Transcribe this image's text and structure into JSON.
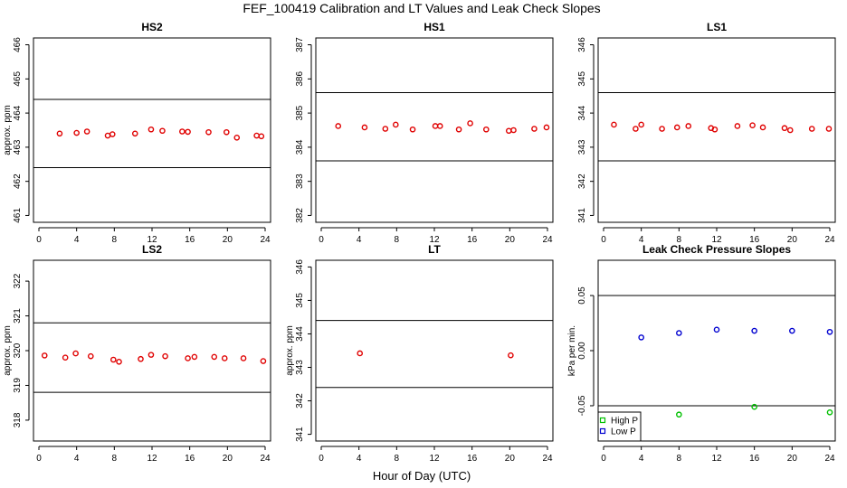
{
  "figure_title": "FEF_100419  Calibration and LT Values and Leak Check Slopes",
  "x_axis_label": "Hour of Day (UTC)",
  "chart_data": [
    {
      "type": "scatter",
      "title": "HS2",
      "ylabel": "approx. ppm",
      "xlim": [
        0,
        24
      ],
      "xticks": [
        0,
        4,
        8,
        12,
        16,
        20,
        24
      ],
      "ylim": [
        460.8,
        466.2
      ],
      "yticks": [
        461,
        462,
        463,
        464,
        465,
        466
      ],
      "hlines": [
        464.4,
        462.4
      ],
      "color": "#e00000",
      "x": [
        2.2,
        4.0,
        5.1,
        7.3,
        7.8,
        10.2,
        11.9,
        13.1,
        15.2,
        15.8,
        18.0,
        19.9,
        21.0,
        23.1,
        23.6
      ],
      "y": [
        463.4,
        463.42,
        463.46,
        463.34,
        463.38,
        463.4,
        463.52,
        463.48,
        463.46,
        463.45,
        463.44,
        463.44,
        463.28,
        463.34,
        463.32
      ]
    },
    {
      "type": "scatter",
      "title": "HS1",
      "ylabel": "",
      "xlim": [
        0,
        24
      ],
      "xticks": [
        0,
        4,
        8,
        12,
        16,
        20,
        24
      ],
      "ylim": [
        381.8,
        387.2
      ],
      "yticks": [
        382,
        383,
        384,
        385,
        386,
        387
      ],
      "hlines": [
        385.6,
        383.6
      ],
      "color": "#e00000",
      "x": [
        1.8,
        4.6,
        6.8,
        7.9,
        9.7,
        12.1,
        12.6,
        14.6,
        15.8,
        17.5,
        19.9,
        20.4,
        22.6,
        23.9
      ],
      "y": [
        384.62,
        384.58,
        384.54,
        384.66,
        384.52,
        384.62,
        384.62,
        384.52,
        384.7,
        384.52,
        384.48,
        384.5,
        384.54,
        384.58
      ]
    },
    {
      "type": "scatter",
      "title": "LS1",
      "ylabel": "",
      "xlim": [
        0,
        24
      ],
      "xticks": [
        0,
        4,
        8,
        12,
        16,
        20,
        24
      ],
      "ylim": [
        340.8,
        346.2
      ],
      "yticks": [
        341,
        342,
        343,
        344,
        345,
        346
      ],
      "hlines": [
        344.6,
        342.6
      ],
      "color": "#e00000",
      "x": [
        1.1,
        3.4,
        4.0,
        6.2,
        7.8,
        9.0,
        11.4,
        11.8,
        14.2,
        15.8,
        16.9,
        19.2,
        19.8,
        22.1,
        23.9
      ],
      "y": [
        343.66,
        343.54,
        343.66,
        343.54,
        343.58,
        343.62,
        343.56,
        343.52,
        343.62,
        343.64,
        343.58,
        343.56,
        343.5,
        343.54,
        343.54
      ]
    },
    {
      "type": "scatter",
      "title": "LS2",
      "ylabel": "approx. ppm",
      "xlim": [
        0,
        24
      ],
      "xticks": [
        0,
        4,
        8,
        12,
        16,
        20,
        24
      ],
      "ylim": [
        317.4,
        322.6
      ],
      "yticks": [
        318,
        319,
        320,
        321,
        322
      ],
      "hlines": [
        320.8,
        318.8
      ],
      "color": "#e00000",
      "x": [
        0.6,
        2.8,
        3.9,
        5.5,
        7.9,
        8.5,
        10.8,
        11.9,
        13.4,
        15.8,
        16.5,
        18.6,
        19.7,
        21.7,
        23.8
      ],
      "y": [
        319.86,
        319.8,
        319.92,
        319.84,
        319.74,
        319.68,
        319.76,
        319.88,
        319.84,
        319.78,
        319.82,
        319.82,
        319.78,
        319.78,
        319.7
      ]
    },
    {
      "type": "scatter",
      "title": "LT",
      "ylabel": "approx. ppm",
      "xlim": [
        0,
        24
      ],
      "xticks": [
        0,
        4,
        8,
        12,
        16,
        20,
        24
      ],
      "ylim": [
        340.8,
        346.2
      ],
      "yticks": [
        341,
        342,
        343,
        344,
        345,
        346
      ],
      "hlines": [
        344.4,
        342.4
      ],
      "color": "#e00000",
      "x": [
        4.1,
        20.1
      ],
      "y": [
        343.42,
        343.36
      ]
    },
    {
      "type": "scatter",
      "title": "Leak Check Pressure Slopes",
      "ylabel": "kPa per min.",
      "xlim": [
        0,
        24
      ],
      "xticks": [
        0,
        4,
        8,
        12,
        16,
        20,
        24
      ],
      "ylim": [
        -0.082,
        0.082
      ],
      "yticks": [
        -0.05,
        0.0,
        0.05
      ],
      "ytick_labels": [
        "-0.05",
        "0.00",
        "0.05"
      ],
      "hlines": [
        0.05,
        -0.05
      ],
      "legend": "bottom-left",
      "series": [
        {
          "name": "High P",
          "color": "#00c000",
          "x": [
            8.0,
            16.0,
            24.0
          ],
          "y": [
            -0.058,
            -0.051,
            -0.056
          ]
        },
        {
          "name": "Low P",
          "color": "#0000d0",
          "x": [
            4.0,
            8.0,
            12.0,
            16.0,
            20.0,
            24.0
          ],
          "y": [
            0.012,
            0.016,
            0.019,
            0.018,
            0.018,
            0.017
          ]
        }
      ]
    }
  ]
}
